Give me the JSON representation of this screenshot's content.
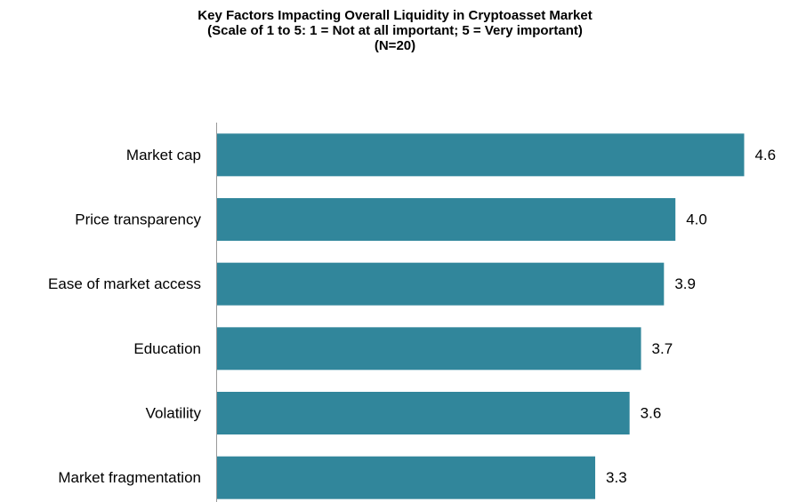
{
  "chart_data": {
    "type": "bar",
    "orientation": "horizontal",
    "title": "Key Factors Impacting Overall Liquidity in Cryptoasset Market",
    "subtitle": [
      "(Scale of 1 to 5: 1 = Not at all important; 5 = Very important)",
      "(N=20)"
    ],
    "categories": [
      "Market cap",
      "Price transparency",
      "Ease of market access",
      "Education",
      "Volatility",
      "Market fragmentation"
    ],
    "values": [
      4.6,
      4.0,
      3.9,
      3.7,
      3.6,
      3.3
    ],
    "value_labels": [
      "4.6",
      "4.0",
      "3.9",
      "3.7",
      "3.6",
      "3.3"
    ],
    "color": "#31869b",
    "xlim": [
      0,
      5
    ]
  }
}
